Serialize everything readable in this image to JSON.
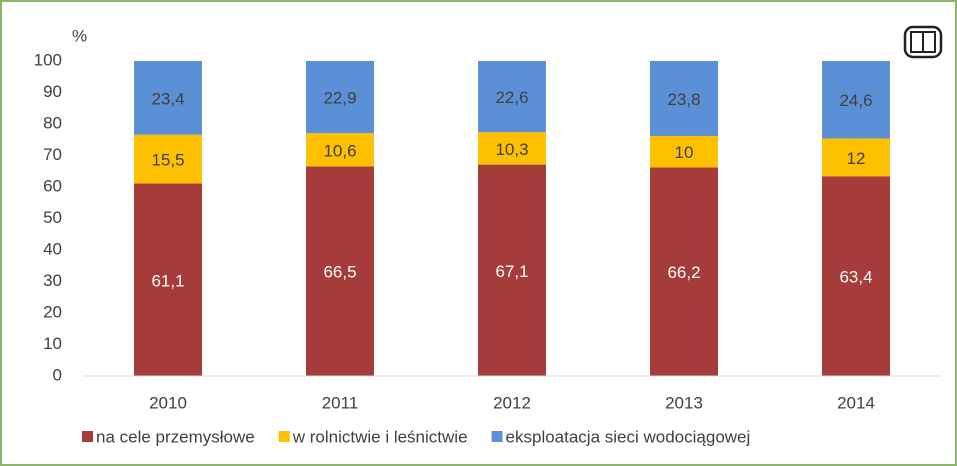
{
  "chart_data": {
    "type": "stacked_bar",
    "y_axis_label": "%",
    "categories": [
      "2010",
      "2011",
      "2012",
      "2013",
      "2014"
    ],
    "series": [
      {
        "name": "na cele przemysłowe",
        "color": "#a63c3a",
        "label_color": "#ffffff",
        "values": [
          61.1,
          66.5,
          67.1,
          66.2,
          63.4
        ],
        "value_labels": [
          "61,1",
          "66,5",
          "67,1",
          "66,2",
          "63,4"
        ]
      },
      {
        "name": "w rolnictwie i leśnictwie",
        "color": "#ffc000",
        "label_color": "#404040",
        "values": [
          15.5,
          10.6,
          10.3,
          10,
          12
        ],
        "value_labels": [
          "15,5",
          "10,6",
          "10,3",
          "10",
          "12"
        ]
      },
      {
        "name": "eksploatacja sieci wodociągowej",
        "color": "#5b8fd6",
        "label_color": "#404040",
        "values": [
          23.4,
          22.9,
          22.6,
          23.8,
          24.6
        ],
        "value_labels": [
          "23,4",
          "22,9",
          "22,6",
          "23,8",
          "24,6"
        ]
      }
    ],
    "ylim": [
      0,
      100
    ],
    "yticks": [
      0,
      10,
      20,
      30,
      40,
      50,
      60,
      70,
      80,
      90,
      100
    ],
    "grid": false,
    "legend": "bottom"
  }
}
